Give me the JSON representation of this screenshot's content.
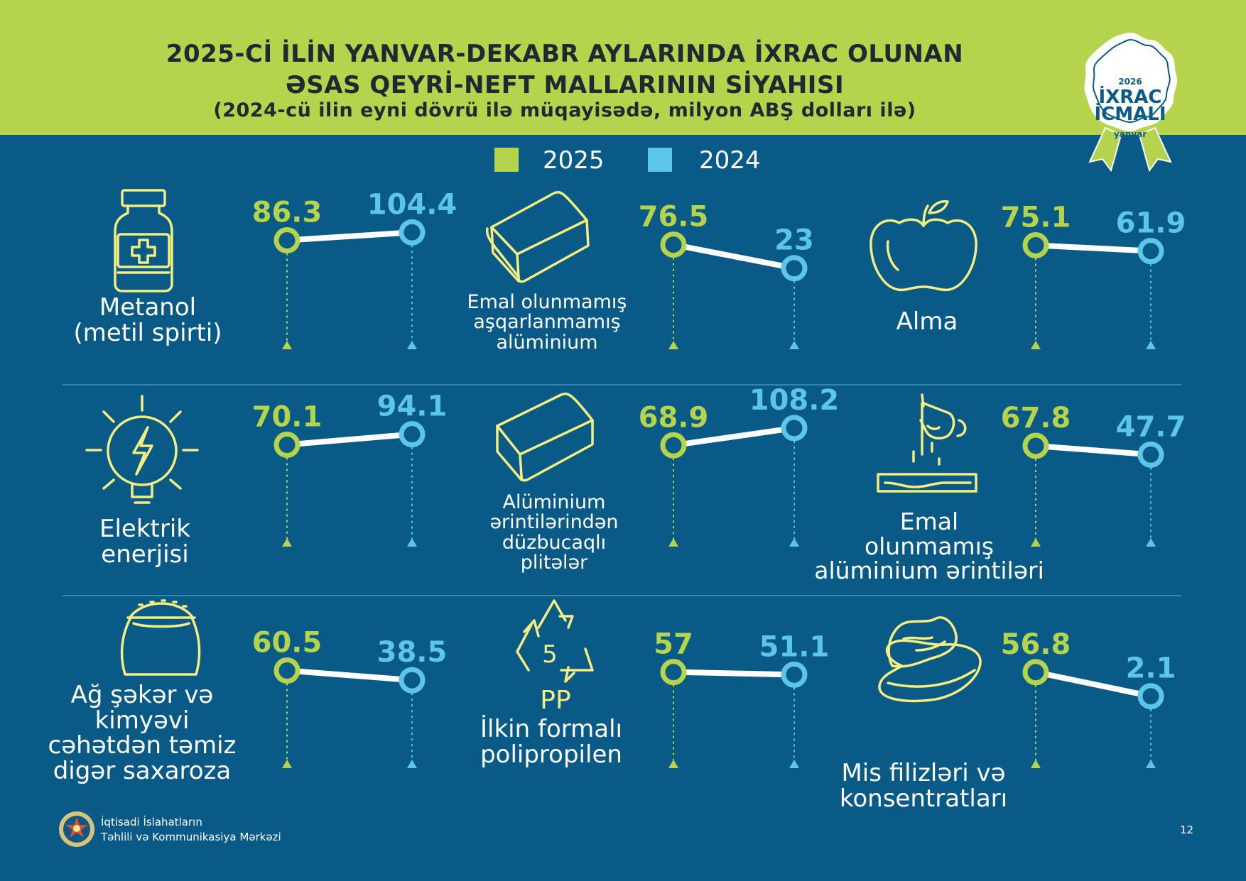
{
  "header": {
    "title_line1": "2025-Cİ İLİN YANVAR-DEKABR AYLARINDA İXRAC OLUNAN",
    "title_line2": "ƏSAS QEYRİ-NEFT MALLARININ SİYAHISI",
    "subtitle": "(2024-cü ilin eyni dövrü ilə müqayisədə, milyon ABŞ dolları ilə)"
  },
  "badge": {
    "year": "2026",
    "line1": "İXRAC",
    "line2": "İCMALI",
    "line3": "yanvar"
  },
  "colors": {
    "y2025": "#b5d44b",
    "y2024": "#5bc6e8",
    "background": "#0a5a87",
    "icon": "#f4ee80"
  },
  "chart_data": {
    "type": "line",
    "legend_position": "top-center",
    "series": [
      {
        "name": "2025"
      },
      {
        "name": "2024"
      }
    ],
    "categories": [
      {
        "label_lines": [
          "Metanol",
          "(metil spirti)"
        ],
        "icon": "medicine-bottle-icon",
        "v2025": 86.3,
        "v2024": 104.4,
        "v2025_text": "86.3",
        "v2024_text": "104.4"
      },
      {
        "label_lines": [
          "Emal olunmamış",
          "aşqarlanmamış",
          "alüminium"
        ],
        "icon": "aluminium-block-icon",
        "v2025": 76.5,
        "v2024": 23,
        "v2025_text": "76.5",
        "v2024_text": "23"
      },
      {
        "label_lines": [
          "Alma"
        ],
        "icon": "apple-icon",
        "v2025": 75.1,
        "v2024": 61.9,
        "v2025_text": "75.1",
        "v2024_text": "61.9"
      },
      {
        "label_lines": [
          "Elektrik",
          "enerjisi"
        ],
        "icon": "light-bulb-icon",
        "v2025": 70.1,
        "v2024": 94.1,
        "v2025_text": "70.1",
        "v2024_text": "94.1"
      },
      {
        "label_lines": [
          "Alüminium",
          "ərintilərindən",
          "düzbucaqlı",
          "plitələr"
        ],
        "icon": "aluminium-plate-icon",
        "v2025": 68.9,
        "v2024": 108.2,
        "v2025_text": "68.9",
        "v2024_text": "108.2"
      },
      {
        "label_lines": [
          "Emal",
          "olunmamış",
          "alüminium ərintiləri"
        ],
        "icon": "molten-metal-pour-icon",
        "v2025": 67.8,
        "v2024": 47.7,
        "v2025_text": "67.8",
        "v2024_text": "47.7"
      },
      {
        "label_lines": [
          "Ağ şəkər və",
          "kimyəvi",
          "cəhətdən təmiz",
          "digər saxaroza"
        ],
        "icon": "sugar-sack-icon",
        "v2025": 60.5,
        "v2024": 38.5,
        "v2025_text": "60.5",
        "v2024_text": "38.5"
      },
      {
        "label_lines": [
          "İlkin formalı",
          "polipropilen"
        ],
        "icon": "recycle-pp-icon",
        "recycle_code": "5",
        "recycle_text": "PP",
        "v2025": 57,
        "v2024": 51.1,
        "v2025_text": "57",
        "v2024_text": "51.1"
      },
      {
        "label_lines": [
          "Mis filizləri və",
          "konsentratları"
        ],
        "icon": "copper-ore-icon",
        "v2025": 56.8,
        "v2024": 2.1,
        "v2025_text": "56.8",
        "v2024_text": "2.1"
      }
    ]
  },
  "footer": {
    "org_line1": "İqtisadi İslahatların",
    "org_line2": "Təhlili və Kommunikasiya Mərkəzi",
    "page_number": "12"
  }
}
